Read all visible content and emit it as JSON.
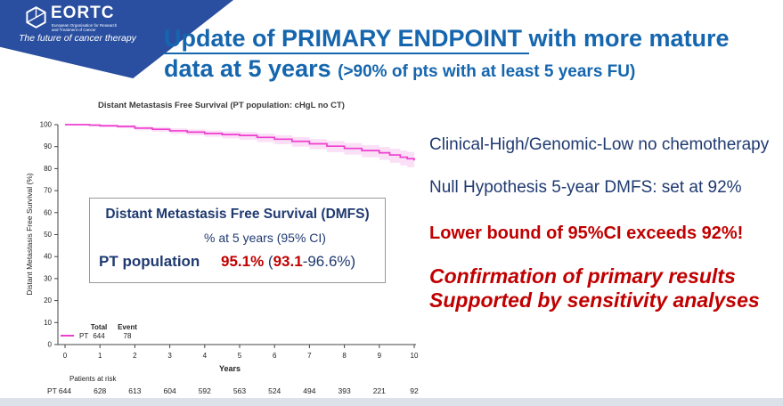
{
  "colors": {
    "accent_blue": "#1566AE",
    "navy": "#1F3A70",
    "red": "#C00000",
    "banner_blue": "#2A4FA0",
    "footer_gray": "#DCE1EA",
    "curve_magenta": "#EE3ECF",
    "band_pink": "#F6C9F0"
  },
  "banner": {
    "org": "EORTC",
    "org_subtitle": "European Organisation for Research and Treatment of Cancer",
    "tagline": "The future of cancer therapy"
  },
  "title": {
    "line1_underlined": "Update of PRIMARY ENDPOINT ",
    "line1_rest": "with more mature",
    "line2_main": "data at 5 years ",
    "line2_note": "(>90% of pts with at least 5 years FU)"
  },
  "chart_data": {
    "type": "line",
    "subtype": "kaplan-meier-survival",
    "title": "Distant Metastasis Free Survival (PT population: cHgL no CT)",
    "xlabel": "Years",
    "ylabel": "Distant Metastasis Free Survival (%)",
    "xlim": [
      0,
      10
    ],
    "ylim": [
      0,
      100
    ],
    "x_ticks": [
      0,
      1,
      2,
      3,
      4,
      5,
      6,
      7,
      8,
      9,
      10
    ],
    "y_ticks": [
      0,
      10,
      20,
      30,
      40,
      50,
      60,
      70,
      80,
      90,
      100
    ],
    "grid": false,
    "series": [
      {
        "name": "PT",
        "color": "#EE3ECF",
        "ci_color": "#F6C9F0",
        "points_format": [
          "years",
          "survival_pct",
          "ci_lower_pct",
          "ci_upper_pct"
        ],
        "points": [
          [
            0,
            100,
            100,
            100
          ],
          [
            0.7,
            99.8,
            99.2,
            100
          ],
          [
            1,
            99.5,
            98.8,
            100
          ],
          [
            1.5,
            99.2,
            98.4,
            99.8
          ],
          [
            2,
            98.4,
            97.4,
            99.3
          ],
          [
            2.5,
            97.9,
            96.8,
            98.9
          ],
          [
            3,
            97.2,
            95.9,
            98.3
          ],
          [
            3.5,
            96.6,
            95.2,
            97.8
          ],
          [
            4,
            96,
            94.5,
            97.3
          ],
          [
            4.5,
            95.5,
            93.8,
            96.9
          ],
          [
            5,
            95.1,
            93.1,
            96.6
          ],
          [
            5.5,
            94.2,
            92.1,
            95.9
          ],
          [
            6,
            93.4,
            91.1,
            95.2
          ],
          [
            6.5,
            92.4,
            90,
            94.4
          ],
          [
            7,
            91.3,
            88.8,
            93.4
          ],
          [
            7.5,
            90.2,
            87.5,
            92.5
          ],
          [
            8,
            89.2,
            86.4,
            91.6
          ],
          [
            8.5,
            88.2,
            85.2,
            90.7
          ],
          [
            9,
            87.2,
            84,
            89.9
          ],
          [
            9.3,
            86.2,
            82.7,
            89
          ],
          [
            9.6,
            85.2,
            81.5,
            88.2
          ],
          [
            9.8,
            84.5,
            80.6,
            87.6
          ],
          [
            10,
            83.7,
            79.4,
            87
          ]
        ]
      }
    ],
    "legend": {
      "position": "bottom-left-inside",
      "headers": [
        "Total",
        "Event"
      ],
      "rows": [
        {
          "label": "PT",
          "total": "644",
          "event": "78"
        }
      ]
    },
    "risk_table": {
      "label": "Patients at risk",
      "rows": [
        {
          "label": "PT",
          "values": [
            "644",
            "628",
            "613",
            "604",
            "592",
            "563",
            "524",
            "494",
            "393",
            "221",
            "92"
          ]
        }
      ]
    }
  },
  "inset_box": {
    "title": "Distant Metastasis Free Survival (DMFS)",
    "subtitle": "% at 5 years (95% CI)",
    "row_label": "PT population",
    "estimate": "95.1%",
    "ci_open": " (",
    "ci_lower": "93.1",
    "ci_close": "-96.6%)"
  },
  "right_panel": {
    "line1": "Clinical-High/Genomic-Low no chemotherapy",
    "line2": "Null Hypothesis 5-year DMFS: set at 92%",
    "line3": "Lower bound of 95%CI exceeds 92%!",
    "conclusion_line1": "Confirmation of primary results",
    "conclusion_line2": "Supported by sensitivity analyses"
  }
}
